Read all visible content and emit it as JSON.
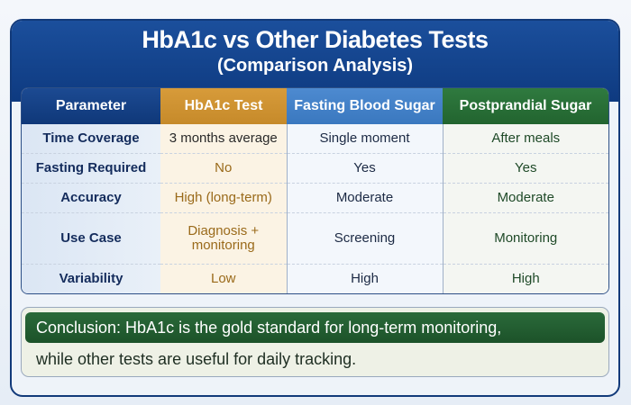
{
  "header": {
    "title": "HbA1c vs Other Diabetes Tests",
    "subtitle": "(Comparison Analysis)"
  },
  "table": {
    "columns": [
      "Parameter",
      "HbA1c Test",
      "Fasting Blood Sugar",
      "Postprandial Sugar"
    ],
    "column_colors": [
      "#0f3879",
      "#d08f30",
      "#4282c8",
      "#28703a"
    ],
    "rows": [
      [
        "Time Coverage",
        "3 months average",
        "Single moment",
        "After meals"
      ],
      [
        "Fasting Required",
        "No",
        "Yes",
        "Yes"
      ],
      [
        "Accuracy",
        "High (long-term)",
        "Moderate",
        "Moderate"
      ],
      [
        "Use Case",
        "Diagnosis + monitoring",
        "Screening",
        "Monitoring"
      ],
      [
        "Variability",
        "Low",
        "High",
        "High"
      ]
    ]
  },
  "conclusion": {
    "line1": "Conclusion: HbA1c is the gold standard for long-term monitoring,",
    "line2": "while other tests are useful for daily tracking."
  }
}
